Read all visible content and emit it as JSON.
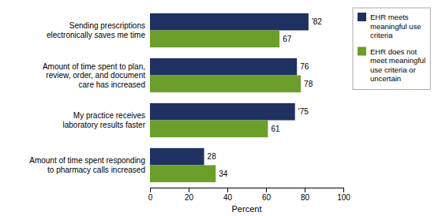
{
  "chart_data": {
    "type": "bar",
    "orientation": "horizontal",
    "categories": [
      "Amount of time spent responding\nto pharmacy calls increased",
      "My practice receives\nlaboratory results faster",
      "Amount of time spent to plan,\nreview, order, and document\ncare has increased",
      "Sending prescriptions\nelectronically saves me time"
    ],
    "series": [
      {
        "name": "EHR meets\nmeaningful use\ncriteria",
        "color": "#1e3160",
        "values": [
          28,
          75,
          76,
          82
        ],
        "value_labels": [
          "28",
          "'75",
          "76",
          "'82"
        ]
      },
      {
        "name": "EHR does not\nmeet meaningful\nuse criteria or\nuncertain",
        "color": "#6b9e2a",
        "values": [
          34,
          61,
          78,
          67
        ]
      }
    ],
    "xlabel": "Percent",
    "xlim": [
      0,
      100
    ],
    "xticks": [
      0,
      20,
      40,
      60,
      80,
      100
    ],
    "data_labels": true,
    "grid": false,
    "legend": "right"
  }
}
